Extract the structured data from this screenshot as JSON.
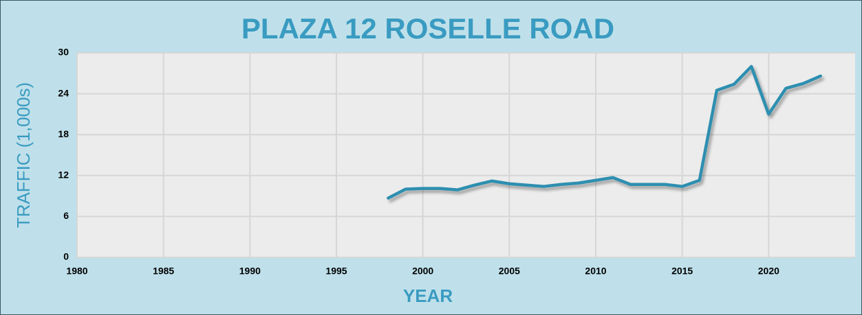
{
  "chart_data": {
    "type": "line",
    "title": "PLAZA 12 ROSELLE ROAD",
    "x_label": "YEAR",
    "y_label": "TRAFFIC (1,000s)",
    "x": [
      1998,
      1999,
      2000,
      2001,
      2002,
      2003,
      2004,
      2005,
      2006,
      2007,
      2008,
      2009,
      2010,
      2011,
      2012,
      2013,
      2014,
      2015,
      2016,
      2017,
      2018,
      2019,
      2020,
      2021,
      2022,
      2023
    ],
    "series": [
      {
        "name": "Traffic",
        "color": "#2e8fb0",
        "values": [
          8.7,
          10.0,
          10.1,
          10.1,
          9.9,
          10.6,
          11.2,
          10.8,
          10.6,
          10.4,
          10.7,
          10.9,
          11.3,
          11.7,
          10.7,
          10.7,
          10.7,
          10.4,
          11.3,
          24.5,
          25.4,
          28.0,
          21.0,
          24.8,
          25.5,
          26.6
        ]
      }
    ],
    "xlim": [
      1980,
      2025
    ],
    "xticks": [
      1980,
      1985,
      1990,
      1995,
      2000,
      2005,
      2010,
      2015,
      2020
    ],
    "ylim": [
      0,
      30
    ],
    "yticks": [
      0,
      6,
      12,
      18,
      24,
      30
    ],
    "grid": true
  }
}
